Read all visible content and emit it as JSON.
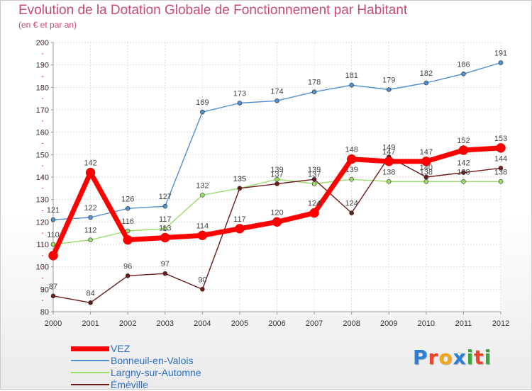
{
  "header": {
    "title": "Evolution de la Dotation Globale de Fonctionnement par Habitant",
    "subtitle": "(en € et par an)"
  },
  "logo": {
    "text": "Proxiti",
    "colors": [
      "#2a7fd4",
      "#e8462a",
      "#f2a618",
      "#2a7fd4",
      "#3aa83a",
      "#e8462a",
      "#3aa83a"
    ]
  },
  "chart_data": {
    "type": "line",
    "x": [
      "2000",
      "2001",
      "2002",
      "2003",
      "2004",
      "2005",
      "2006",
      "2007",
      "2008",
      "2009",
      "2010",
      "2011",
      "2012"
    ],
    "ylim": [
      80,
      200
    ],
    "yticks": [
      "80",
      "90",
      "100",
      "110",
      "120",
      "130",
      "140",
      "150",
      "160",
      "170",
      "180",
      "190",
      "200"
    ],
    "grid": true,
    "legend_position": "bottom-left",
    "series": [
      {
        "name": "VEZ",
        "color": "#ff0000",
        "values": [
          105,
          142,
          112,
          113,
          114,
          117,
          120,
          124,
          148,
          147,
          147,
          152,
          153
        ],
        "labels": [
          "",
          "142",
          "",
          "113",
          "114",
          "117",
          "120",
          "124",
          "148",
          "147",
          "147",
          "152",
          "153"
        ]
      },
      {
        "name": "Bonneuil-en-Valois",
        "color": "#4f8fcf",
        "values": [
          121,
          122,
          126,
          127,
          169,
          173,
          174,
          178,
          181,
          179,
          182,
          186,
          191
        ],
        "labels": [
          "121",
          "122",
          "126",
          "127",
          "169",
          "173",
          "174",
          "178",
          "181",
          "179",
          "182",
          "186",
          "191"
        ]
      },
      {
        "name": "Largny-sur-Automne",
        "color": "#99dd66",
        "values": [
          110,
          112,
          116,
          117,
          132,
          135,
          139,
          137,
          139,
          138,
          138,
          138,
          138
        ],
        "labels": [
          "110",
          "112",
          "116",
          "117",
          "132",
          "135",
          "139",
          "137",
          "139",
          "138",
          "138",
          "138",
          "138"
        ]
      },
      {
        "name": "Éméville",
        "color": "#6b1a1a",
        "values": [
          87,
          84,
          96,
          97,
          90,
          135,
          137,
          139,
          124,
          149,
          140,
          142,
          144
        ],
        "labels": [
          "87",
          "84",
          "96",
          "97",
          "90",
          "135",
          "137",
          "139",
          "124",
          "149",
          "140",
          "142",
          "144"
        ]
      }
    ]
  }
}
